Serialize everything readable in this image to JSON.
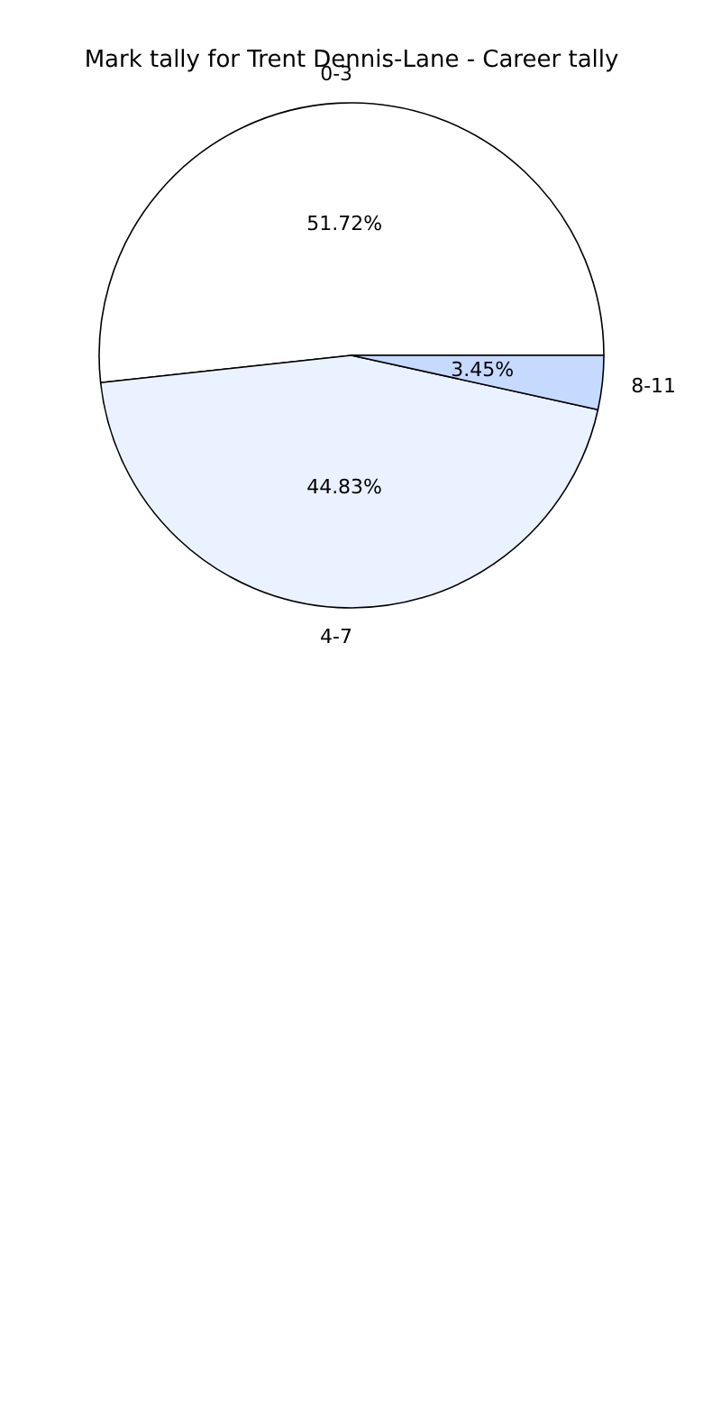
{
  "chart_data": {
    "type": "pie",
    "title": "Mark tally for Trent Dennis-Lane - Career tally",
    "categories": [
      "0-3",
      "4-7",
      "8-11"
    ],
    "values": [
      51.72,
      44.83,
      3.45
    ],
    "colors": [
      "#ffffff",
      "#ebf2ff",
      "#c6d9ff"
    ],
    "value_labels": [
      "51.72%",
      "44.83%",
      "3.45%"
    ]
  }
}
